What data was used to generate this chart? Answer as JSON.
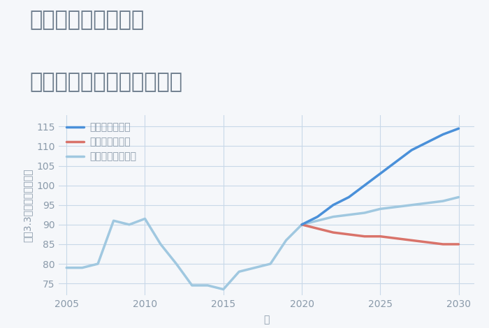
{
  "title_line1": "千葉県市原市石川の",
  "title_line2": "中古マンションの価格推移",
  "xlabel": "年",
  "ylabel": "坪（3.3㎡）単価（万円）",
  "background_color": "#f5f7fa",
  "grid_color": "#c8d8e8",
  "title_color": "#6a7a8a",
  "axis_color": "#8a9aaa",
  "ylim": [
    72,
    118
  ],
  "yticks": [
    75,
    80,
    85,
    90,
    95,
    100,
    105,
    110,
    115
  ],
  "xlim": [
    2004.5,
    2031
  ],
  "xticks": [
    2005,
    2010,
    2015,
    2020,
    2025,
    2030
  ],
  "normal_x": [
    2005,
    2006,
    2007,
    2008,
    2009,
    2010,
    2011,
    2012,
    2013,
    2014,
    2015,
    2016,
    2017,
    2018,
    2019,
    2020,
    2021,
    2022,
    2023,
    2024,
    2025,
    2026,
    2027,
    2028,
    2029,
    2030
  ],
  "normal_y": [
    79,
    79,
    80,
    91,
    90,
    91.5,
    85,
    80,
    74.5,
    74.5,
    73.5,
    78,
    79,
    80,
    86,
    90,
    91,
    92,
    92.5,
    93,
    94,
    94.5,
    95,
    95.5,
    96,
    97
  ],
  "good_x": [
    2020,
    2021,
    2022,
    2023,
    2024,
    2025,
    2026,
    2027,
    2028,
    2029,
    2030
  ],
  "good_y": [
    90,
    92,
    95,
    97,
    100,
    103,
    106,
    109,
    111,
    113,
    114.5
  ],
  "bad_x": [
    2020,
    2021,
    2022,
    2023,
    2024,
    2025,
    2026,
    2027,
    2028,
    2029,
    2030
  ],
  "bad_y": [
    90,
    89,
    88,
    87.5,
    87,
    87,
    86.5,
    86,
    85.5,
    85,
    85
  ],
  "good_color": "#4a90d9",
  "bad_color": "#d9736a",
  "normal_color": "#a0c8e0",
  "good_label": "グッドシナリオ",
  "bad_label": "バッドシナリオ",
  "normal_label": "ノーマルシナリオ",
  "linewidth": 2.5,
  "title_fontsize": 22,
  "tick_fontsize": 10,
  "label_fontsize": 10,
  "legend_fontsize": 10
}
